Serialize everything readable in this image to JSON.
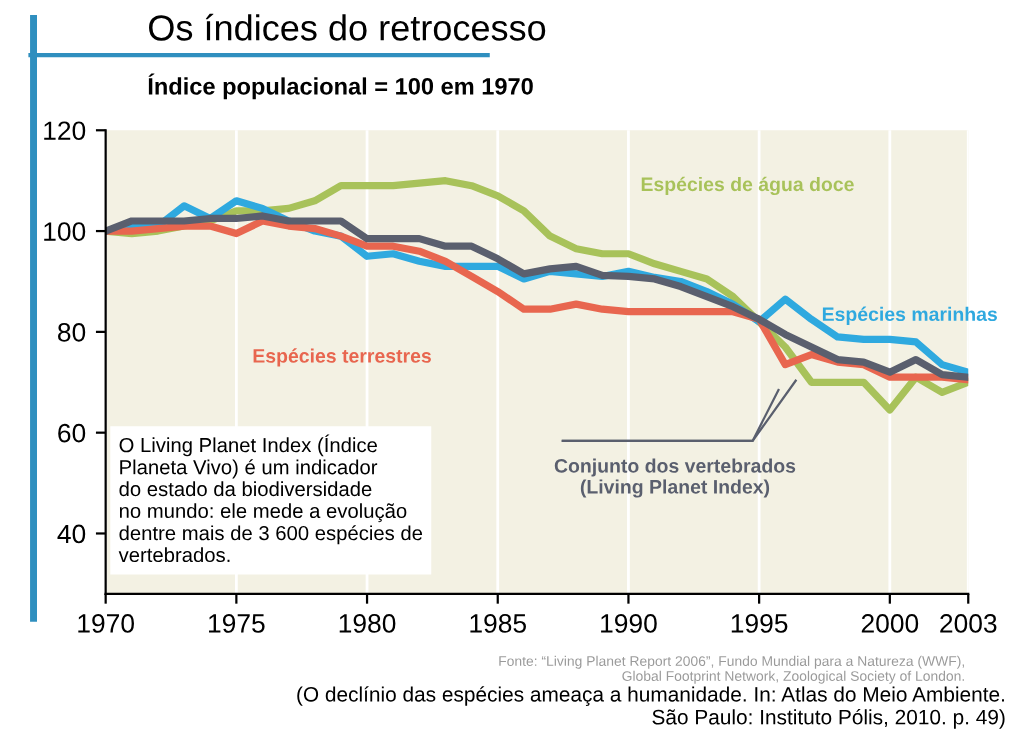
{
  "chart_data": {
    "type": "line",
    "title": "Os índices do retrocesso",
    "ylabel": "Índice populacional = 100 em 1970",
    "x": [
      1970,
      1971,
      1972,
      1973,
      1974,
      1975,
      1976,
      1977,
      1978,
      1979,
      1980,
      1981,
      1982,
      1983,
      1984,
      1985,
      1986,
      1987,
      1988,
      1989,
      1990,
      1991,
      1992,
      1993,
      1994,
      1995,
      1996,
      1997,
      1998,
      1999,
      2000,
      2001,
      2002,
      2003
    ],
    "series": [
      {
        "name": "Espécies de água doce",
        "color": "#a8c25a",
        "values": [
          100,
          99.5,
          100,
          101,
          102,
          104,
          104,
          104.5,
          106,
          109,
          109,
          109,
          109.5,
          110,
          109,
          107,
          104,
          99,
          96.5,
          95.5,
          95.5,
          93.5,
          92,
          90.5,
          87,
          82,
          77,
          70,
          70,
          70,
          64.5,
          71,
          68,
          70
        ]
      },
      {
        "name": "Espécies marinhas",
        "color": "#2fa9df",
        "values": [
          100,
          101,
          101,
          105,
          102.5,
          106,
          104.5,
          102,
          100,
          99,
          95,
          95.5,
          94,
          93,
          93,
          93,
          90.5,
          92,
          91.5,
          91,
          92,
          90.8,
          90,
          88,
          85.5,
          82,
          86.5,
          82.5,
          79,
          78.5,
          78.5,
          78,
          73.5,
          72
        ]
      },
      {
        "name": "Espécies terrestres",
        "color": "#e8664f",
        "values": [
          100,
          100,
          100.5,
          101,
          101,
          99.5,
          102,
          101,
          100.5,
          99,
          97,
          97,
          96,
          94,
          91,
          88,
          84.5,
          84.5,
          85.5,
          84.5,
          84,
          84,
          84,
          84,
          84,
          82.5,
          73.5,
          75.5,
          74,
          73.5,
          71,
          71,
          71,
          70.5
        ]
      },
      {
        "name": "Conjunto dos vertebrados\n(Living Planet Index)",
        "color": "#5a5f6e",
        "values": [
          100,
          102,
          102,
          102,
          102.5,
          102.5,
          103,
          102,
          102,
          102,
          98.5,
          98.5,
          98.5,
          97,
          97,
          94.5,
          91.5,
          92.5,
          93,
          91.2,
          91,
          90.5,
          89,
          87,
          85,
          82.5,
          79.5,
          77,
          74.5,
          74,
          72,
          74.5,
          71.5,
          71
        ]
      }
    ],
    "xlim": [
      1970,
      2003
    ],
    "ylim": [
      28,
      120
    ],
    "xticks": [
      1970,
      1975,
      1980,
      1985,
      1990,
      1995,
      2000,
      2003
    ],
    "yticks": [
      40,
      60,
      80,
      100,
      120
    ],
    "grid": "x",
    "legend": false,
    "marker": "none",
    "line_style": "solid",
    "annotations": [
      "O Living Planet Index (Índice\nPlaneta Vivo) é um indicador\ndo estado da biodiversidade\nno mundo: ele mede a evolução\ndentre mais de 3 600 espécies de\nvertebrados.",
      "Fonte: “Living Planet Report 2006”, Fundo Mundial para a Natureza (WWF),\nGlobal Footprint Network, Zoological Society of London.",
      "(O declínio das espécies ameaça a humanidade. In: Atlas do Meio Ambiente.\nSão Paulo: Instituto Pólis, 2010. p. 49)"
    ]
  }
}
